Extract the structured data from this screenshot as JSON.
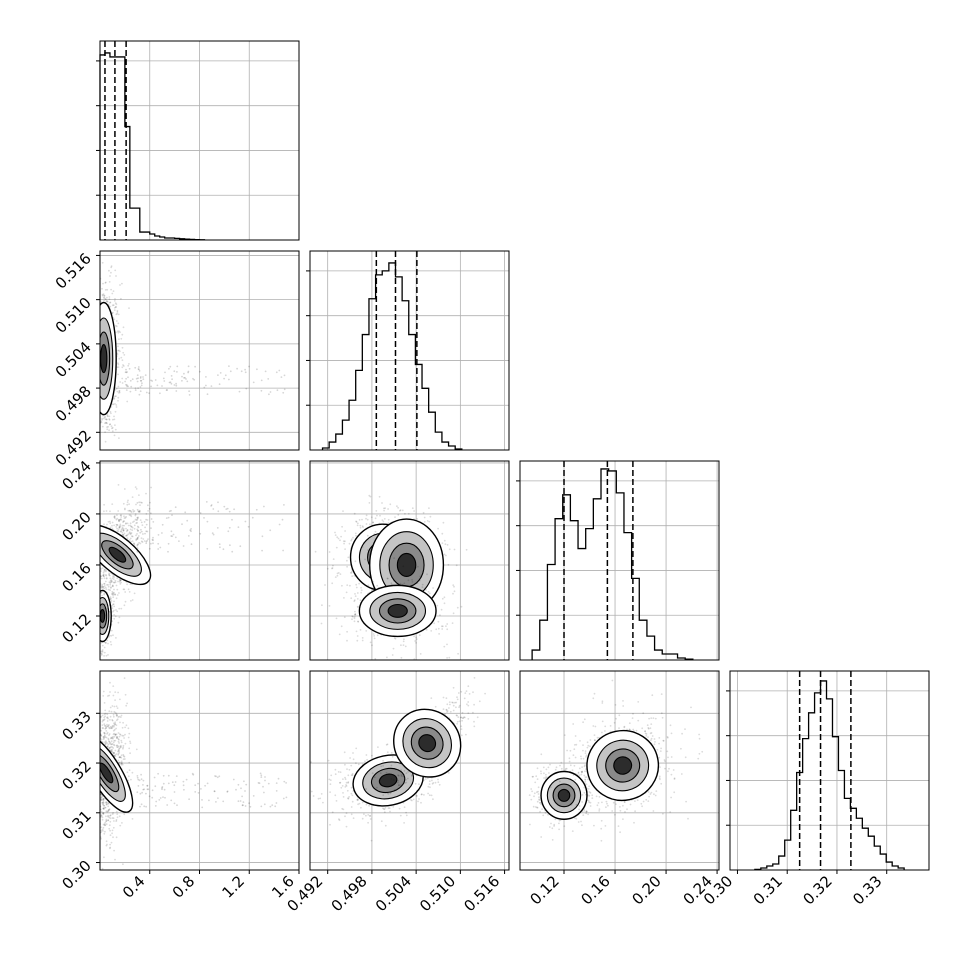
{
  "chart_data": {
    "type": "corner",
    "parameters": 4,
    "title": "",
    "grid": true,
    "colors": {
      "frame": "#000000",
      "grid": "#b0b0b0",
      "points": "#000000",
      "hist": "#000000"
    },
    "axes": {
      "p0": {
        "range": [
          0,
          1.6
        ],
        "ticks": [
          0.4,
          0.8,
          1.2,
          1.6
        ],
        "tick_labels": [
          "0.4",
          "0.8",
          "1.2",
          "1.6"
        ]
      },
      "p1": {
        "range": [
          0.4896,
          0.5166
        ],
        "ticks": [
          0.492,
          0.498,
          0.504,
          0.51,
          0.516
        ],
        "tick_labels": [
          "0.492",
          "0.498",
          "0.504",
          "0.510",
          "0.516"
        ]
      },
      "p2": {
        "range": [
          0.0855,
          0.2415
        ],
        "ticks": [
          0.12,
          0.16,
          0.2,
          0.24
        ],
        "tick_labels": [
          "0.12",
          "0.16",
          "0.20",
          "0.24"
        ]
      },
      "p3": {
        "range": [
          0.2985,
          0.3385
        ],
        "ticks": [
          0.3,
          0.31,
          0.32,
          0.33
        ],
        "tick_labels": [
          "0.30",
          "0.31",
          "0.32",
          "0.33"
        ]
      }
    },
    "histograms": [
      {
        "param": "p0",
        "quantile_lines": [
          0.04,
          0.12,
          0.21
        ],
        "bin_edges": [
          0,
          0.04,
          0.08,
          0.12,
          0.16,
          0.2,
          0.24,
          0.28,
          0.32,
          0.36,
          0.4,
          0.44,
          0.48,
          0.52,
          0.56,
          0.6,
          0.64,
          0.68,
          0.72,
          0.76,
          0.8,
          0.84
        ],
        "counts": [
          0.93,
          0.94,
          0.92,
          0.92,
          0.92,
          0.57,
          0.16,
          0.16,
          0.04,
          0.04,
          0.03,
          0.02,
          0.015,
          0.01,
          0.01,
          0.008,
          0.006,
          0.004,
          0.003,
          0.002,
          0.001
        ]
      },
      {
        "param": "p1",
        "quantile_lines": [
          0.4986,
          0.5012,
          0.5041
        ],
        "bin_edges": [
          0.4913,
          0.4922,
          0.4931,
          0.494,
          0.4949,
          0.4958,
          0.4967,
          0.4976,
          0.4985,
          0.4994,
          0.5003,
          0.5012,
          0.5021,
          0.503,
          0.5039,
          0.5048,
          0.5057,
          0.5066,
          0.5075,
          0.5084,
          0.5093,
          0.5102
        ],
        "counts": [
          0.01,
          0.04,
          0.08,
          0.15,
          0.25,
          0.4,
          0.58,
          0.76,
          0.88,
          0.9,
          0.94,
          0.87,
          0.75,
          0.58,
          0.43,
          0.31,
          0.19,
          0.09,
          0.04,
          0.02,
          0.005
        ]
      },
      {
        "param": "p2",
        "quantile_lines": [
          0.12,
          0.154,
          0.174
        ],
        "bin_edges": [
          0.095,
          0.101,
          0.107,
          0.113,
          0.119,
          0.125,
          0.131,
          0.137,
          0.143,
          0.149,
          0.155,
          0.161,
          0.167,
          0.173,
          0.179,
          0.185,
          0.191,
          0.197,
          0.203,
          0.209,
          0.215,
          0.221
        ],
        "counts": [
          0.05,
          0.2,
          0.48,
          0.71,
          0.83,
          0.7,
          0.56,
          0.66,
          0.81,
          0.96,
          0.95,
          0.84,
          0.64,
          0.41,
          0.2,
          0.12,
          0.05,
          0.03,
          0.03,
          0.01,
          0.004
        ]
      },
      {
        "param": "p3",
        "quantile_lines": [
          0.3125,
          0.3167,
          0.3228
        ],
        "bin_edges": [
          0.3035,
          0.3047,
          0.3059,
          0.3071,
          0.3083,
          0.3095,
          0.3107,
          0.3119,
          0.3131,
          0.3143,
          0.3155,
          0.3167,
          0.3179,
          0.3191,
          0.3203,
          0.3215,
          0.3227,
          0.3239,
          0.3251,
          0.3263,
          0.3275,
          0.3287,
          0.3299,
          0.3311,
          0.3323,
          0.3335
        ],
        "counts": [
          0.003,
          0.01,
          0.02,
          0.03,
          0.07,
          0.15,
          0.3,
          0.49,
          0.66,
          0.79,
          0.89,
          0.95,
          0.86,
          0.67,
          0.5,
          0.36,
          0.31,
          0.26,
          0.21,
          0.17,
          0.12,
          0.08,
          0.04,
          0.02,
          0.01
        ]
      }
    ],
    "density_blobs": [
      {
        "row": "p1",
        "col": "p0",
        "components": [
          {
            "x": 0.03,
            "y": 0.502,
            "sx": 0.05,
            "sy": 0.0038,
            "rho": 0,
            "w": 1
          }
        ],
        "tail": {
          "x": [
            0.2,
            1.5
          ],
          "y": [
            0.497,
            0.501
          ]
        }
      },
      {
        "row": "p2",
        "col": "p0",
        "components": [
          {
            "x": 0.02,
            "y": 0.12,
            "sx": 0.035,
            "sy": 0.01,
            "rho": 0,
            "w": 0.4
          },
          {
            "x": 0.14,
            "y": 0.168,
            "sx": 0.07,
            "sy": 0.016,
            "rho": 0.5,
            "w": 0.6
          }
        ],
        "tail": {
          "x": [
            0.3,
            1.5
          ],
          "y": [
            0.17,
            0.21
          ]
        }
      },
      {
        "row": "p3",
        "col": "p0",
        "components": [
          {
            "x": 0.05,
            "y": 0.318,
            "sx": 0.06,
            "sy": 0.0045,
            "rho": 0.2,
            "w": 1
          }
        ],
        "tail": {
          "x": [
            0.3,
            1.5
          ],
          "y": [
            0.311,
            0.318
          ]
        }
      },
      {
        "row": "p2",
        "col": "p1",
        "components": [
          {
            "x": 0.4995,
            "y": 0.166,
            "sx": 0.0022,
            "sy": 0.013,
            "rho": 0,
            "w": 0.55
          },
          {
            "x": 0.5027,
            "y": 0.16,
            "sx": 0.0025,
            "sy": 0.018,
            "rho": 0,
            "w": 0.2
          },
          {
            "x": 0.5015,
            "y": 0.124,
            "sx": 0.0026,
            "sy": 0.01,
            "rho": 0,
            "w": 0.35
          }
        ]
      },
      {
        "row": "p3",
        "col": "p1",
        "components": [
          {
            "x": 0.5002,
            "y": 0.3165,
            "sx": 0.0024,
            "sy": 0.0025,
            "rho": 0.3,
            "w": 0.6
          },
          {
            "x": 0.5055,
            "y": 0.324,
            "sx": 0.0022,
            "sy": 0.0035,
            "rho": 0.8,
            "w": 0.4
          }
        ]
      },
      {
        "row": "p3",
        "col": "p2",
        "components": [
          {
            "x": 0.12,
            "y": 0.3135,
            "sx": 0.009,
            "sy": 0.0024,
            "rho": 0,
            "w": 0.35
          },
          {
            "x": 0.166,
            "y": 0.3195,
            "sx": 0.014,
            "sy": 0.0035,
            "rho": 0.2,
            "w": 0.65
          }
        ]
      }
    ]
  }
}
